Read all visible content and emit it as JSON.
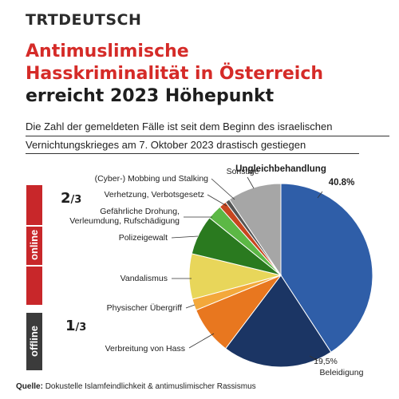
{
  "brand": "TRTDEUTSCH",
  "title": {
    "line1": "Antimuslimische",
    "line2": "Hasskriminalität in Österreich",
    "line3": "erreicht 2023 Höhepunkt"
  },
  "subtitle": {
    "line1": "Die Zahl der gemeldeten Fälle ist seit dem Beginn des israelischen",
    "line2": "Vernichtungskrieges am 7. Oktober 2023 drastisch gestiegen"
  },
  "sidebar": {
    "online_label": "online",
    "offline_label": "offline",
    "online_fraction": {
      "num": "2",
      "den": "/3"
    },
    "offline_fraction": {
      "num": "1",
      "den": "/3"
    }
  },
  "source": {
    "label": "Quelle:",
    "text": "Dokustelle Islamfeindlichkeit & antimuslimischer Rassismus"
  },
  "chart_data": {
    "type": "pie",
    "unit": "%",
    "slices": [
      {
        "label": "Ungleichbehandlung",
        "value": 40.8,
        "value_label": "40.8%",
        "color": "#2f5ea8"
      },
      {
        "label": "Beleidigung",
        "value": 19.5,
        "value_label": "19,5%",
        "color": "#1b3564"
      },
      {
        "label": "Verbreitung von Hass",
        "value": 8.5,
        "color": "#e8771f"
      },
      {
        "label": "Physischer Übergriff",
        "value": 2.0,
        "color": "#f3a83b"
      },
      {
        "label": "Vandalismus",
        "value": 8.0,
        "color": "#e8d65a"
      },
      {
        "label": "Polizeigewalt",
        "value": 7.0,
        "color": "#2a7a1f"
      },
      {
        "label": "Gefährliche Drohung, Verleumdung, Rufschädigung",
        "value": 2.6,
        "color": "#5cb845"
      },
      {
        "label": "Verhetzung, Verbotsgesetz",
        "value": 1.3,
        "color": "#c8461f"
      },
      {
        "label": "(Cyber-) Mobbing und Stalking",
        "value": 0.8,
        "color": "#555555"
      },
      {
        "label": "Sonstige",
        "value": 9.5,
        "color": "#a6a6a6"
      }
    ]
  }
}
